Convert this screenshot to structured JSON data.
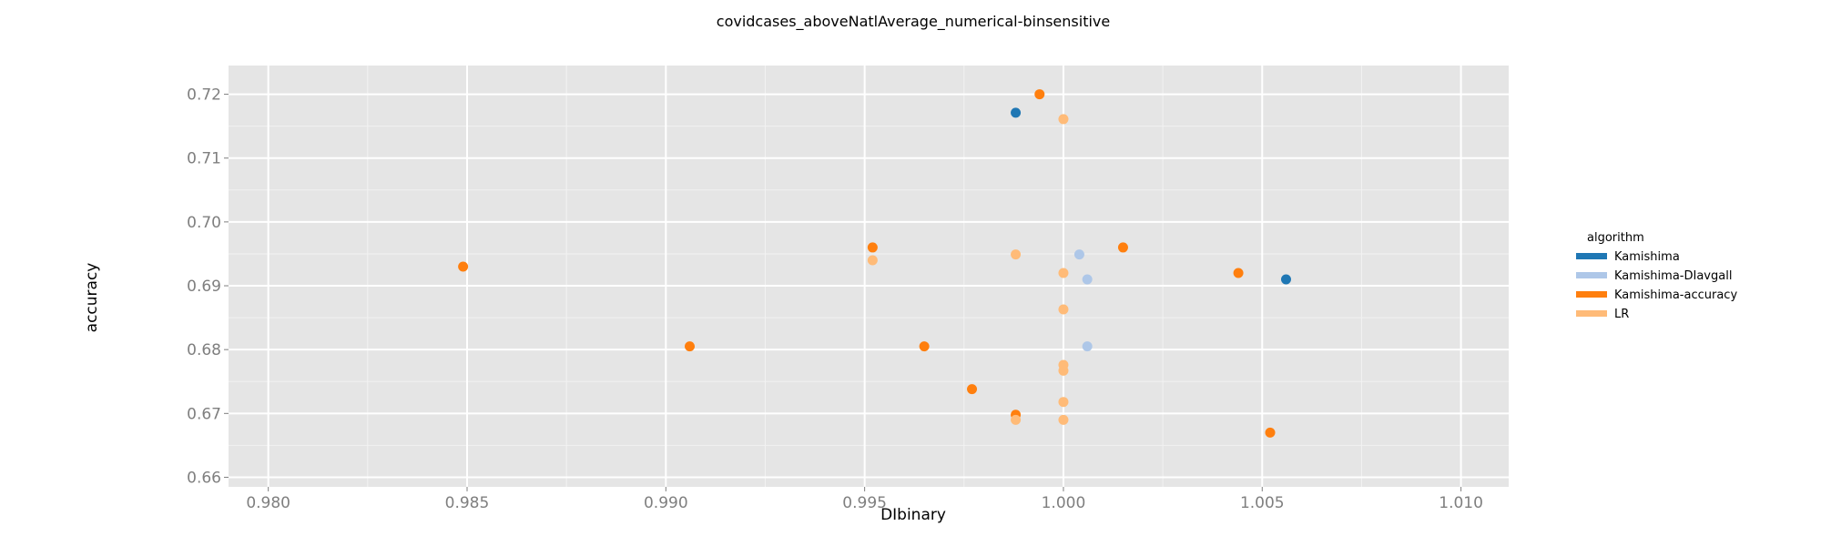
{
  "chart_data": {
    "type": "scatter",
    "title": "covidcases_aboveNatlAverage_numerical-binsensitive",
    "xlabel": "DIbinary",
    "ylabel": "accuracy",
    "xlim": [
      0.979,
      1.0112
    ],
    "ylim": [
      0.6585,
      0.7245
    ],
    "x_ticks": [
      "0.980",
      "0.985",
      "0.990",
      "0.995",
      "1.000",
      "1.005",
      "1.010"
    ],
    "y_ticks": [
      "0.66",
      "0.67",
      "0.68",
      "0.69",
      "0.70",
      "0.71",
      "0.72"
    ],
    "grid": true,
    "legend": {
      "title": "algorithm",
      "position": "right"
    },
    "series": [
      {
        "name": "Kamishima",
        "color": "#1f77b4",
        "points": [
          {
            "x": 0.9988,
            "y": 0.7171
          },
          {
            "x": 1.0056,
            "y": 0.691
          }
        ]
      },
      {
        "name": "Kamishima-DIavgall",
        "color": "#aec7e8",
        "points": [
          {
            "x": 1.0004,
            "y": 0.6949
          },
          {
            "x": 1.0006,
            "y": 0.691
          },
          {
            "x": 1.0006,
            "y": 0.6805
          }
        ]
      },
      {
        "name": "Kamishima-accuracy",
        "color": "#ff7f0e",
        "points": [
          {
            "x": 0.9994,
            "y": 0.72
          },
          {
            "x": 0.9849,
            "y": 0.693
          },
          {
            "x": 0.9952,
            "y": 0.696
          },
          {
            "x": 1.0015,
            "y": 0.696
          },
          {
            "x": 1.0044,
            "y": 0.692
          },
          {
            "x": 0.9906,
            "y": 0.6805
          },
          {
            "x": 0.9965,
            "y": 0.6805
          },
          {
            "x": 0.9977,
            "y": 0.6738
          },
          {
            "x": 0.9988,
            "y": 0.6698
          },
          {
            "x": 1.0052,
            "y": 0.667
          }
        ]
      },
      {
        "name": "LR",
        "color": "#ffbb78",
        "points": [
          {
            "x": 1.0,
            "y": 0.7161
          },
          {
            "x": 0.9988,
            "y": 0.6949
          },
          {
            "x": 0.9952,
            "y": 0.694
          },
          {
            "x": 1.0,
            "y": 0.692
          },
          {
            "x": 1.0,
            "y": 0.6863
          },
          {
            "x": 1.0,
            "y": 0.6776
          },
          {
            "x": 1.0,
            "y": 0.6767
          },
          {
            "x": 1.0,
            "y": 0.6718
          },
          {
            "x": 0.9988,
            "y": 0.669
          },
          {
            "x": 1.0,
            "y": 0.669
          }
        ]
      }
    ]
  }
}
